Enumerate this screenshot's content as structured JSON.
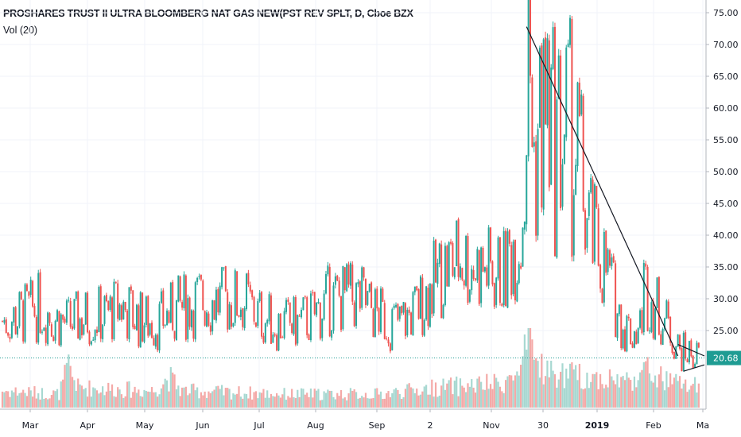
{
  "header": {
    "title": "PROSHARES TRUST II ULTRA BLOOMBERG NAT GAS NEW(PST REV SPLT, D, Cboe BZX",
    "indicator": "Vol (20)"
  },
  "last_price_label": "20.68",
  "colors": {
    "up": "#26a69a",
    "down": "#ef5350",
    "vol_up": "#a7d8d1",
    "vol_down": "#f4a9a7",
    "grid": "#f0f3fa",
    "last_price": "#1f9c93",
    "trendline": "#131722"
  },
  "chart_data": {
    "type": "candlestick",
    "y_ticks": [
      "25.00",
      "30.00",
      "35.00",
      "40.00",
      "45.00",
      "50.00",
      "55.00",
      "60.00",
      "65.00",
      "70.00",
      "75.00"
    ],
    "y_tick_values": [
      25,
      30,
      35,
      40,
      45,
      50,
      55,
      60,
      65,
      70,
      75
    ],
    "ylim": [
      14.5,
      76
    ],
    "x_ticks": [
      {
        "label": "Mar",
        "bold": false
      },
      {
        "label": "Apr",
        "bold": false
      },
      {
        "label": "May",
        "bold": false
      },
      {
        "label": "Jun",
        "bold": false
      },
      {
        "label": "Jul",
        "bold": false
      },
      {
        "label": "Aug",
        "bold": false
      },
      {
        "label": "Sep",
        "bold": false
      },
      {
        "label": "2",
        "bold": false
      },
      {
        "label": "Nov",
        "bold": false
      },
      {
        "label": "30",
        "bold": false
      },
      {
        "label": "2019",
        "bold": true
      },
      {
        "label": "Feb",
        "bold": false
      },
      {
        "label": "Ma",
        "bold": false
      }
    ],
    "last_price": 20.68,
    "price_anchors": [
      [
        0,
        26.5
      ],
      [
        10,
        27.3
      ],
      [
        20,
        28.8
      ],
      [
        28,
        27.0
      ],
      [
        35,
        26.0
      ],
      [
        45,
        27.2
      ],
      [
        55,
        27.5
      ],
      [
        63,
        28.8
      ],
      [
        72,
        26.8
      ],
      [
        82,
        26.3
      ],
      [
        90,
        27.8
      ],
      [
        100,
        29.5
      ],
      [
        110,
        29.8
      ],
      [
        118,
        29.3
      ],
      [
        126,
        30.0
      ],
      [
        135,
        27.5
      ],
      [
        145,
        26.0
      ],
      [
        155,
        26.0
      ],
      [
        165,
        27.5
      ],
      [
        172,
        29.5
      ],
      [
        180,
        30.2
      ],
      [
        190,
        29.8
      ],
      [
        196,
        28.0
      ],
      [
        203,
        26.5
      ],
      [
        210,
        26.2
      ],
      [
        218,
        28.0
      ],
      [
        226,
        31.5
      ],
      [
        234,
        35.0
      ],
      [
        242,
        36.5
      ],
      [
        250,
        35.2
      ],
      [
        256,
        34.5
      ],
      [
        262,
        34.0
      ],
      [
        266,
        34.2
      ],
      [
        270,
        39.2
      ],
      [
        274,
        40.5
      ],
      [
        276,
        50.0
      ],
      [
        278,
        71.0
      ],
      [
        281,
        52.0
      ],
      [
        284,
        58.0
      ],
      [
        288,
        59.5
      ],
      [
        292,
        54.0
      ],
      [
        296,
        57.0
      ],
      [
        300,
        55.0
      ],
      [
        305,
        51.0
      ],
      [
        309,
        42.0
      ],
      [
        313,
        38.5
      ],
      [
        317,
        36.5
      ],
      [
        321,
        33.0
      ],
      [
        325,
        28.0
      ],
      [
        329,
        25.5
      ],
      [
        333,
        25.0
      ],
      [
        337,
        25.5
      ],
      [
        339,
        32.0
      ],
      [
        343,
        30.0
      ],
      [
        347,
        28.0
      ],
      [
        351,
        26.0
      ],
      [
        355,
        24.0
      ],
      [
        358,
        21.5
      ],
      [
        361,
        21.5
      ],
      [
        364,
        21.5
      ],
      [
        368,
        20.68
      ]
    ],
    "volume_anchors": [
      [
        0,
        0.25
      ],
      [
        30,
        0.2
      ],
      [
        35,
        0.6
      ],
      [
        40,
        0.3
      ],
      [
        80,
        0.25
      ],
      [
        88,
        0.45
      ],
      [
        95,
        0.25
      ],
      [
        150,
        0.2
      ],
      [
        200,
        0.2
      ],
      [
        230,
        0.3
      ],
      [
        262,
        0.35
      ],
      [
        274,
        0.5
      ],
      [
        278,
        1.0
      ],
      [
        282,
        0.7
      ],
      [
        290,
        0.5
      ],
      [
        310,
        0.45
      ],
      [
        330,
        0.4
      ],
      [
        340,
        0.55
      ],
      [
        350,
        0.4
      ],
      [
        368,
        0.3
      ]
    ],
    "trendlines": [
      {
        "from": [
          277,
          72.8
        ],
        "to": [
          357,
          21.0
        ]
      },
      {
        "from": [
          357,
          22.8
        ],
        "to": [
          371,
          21.0
        ]
      },
      {
        "from": [
          360,
          18.6
        ],
        "to": [
          371,
          19.6
        ]
      }
    ]
  }
}
